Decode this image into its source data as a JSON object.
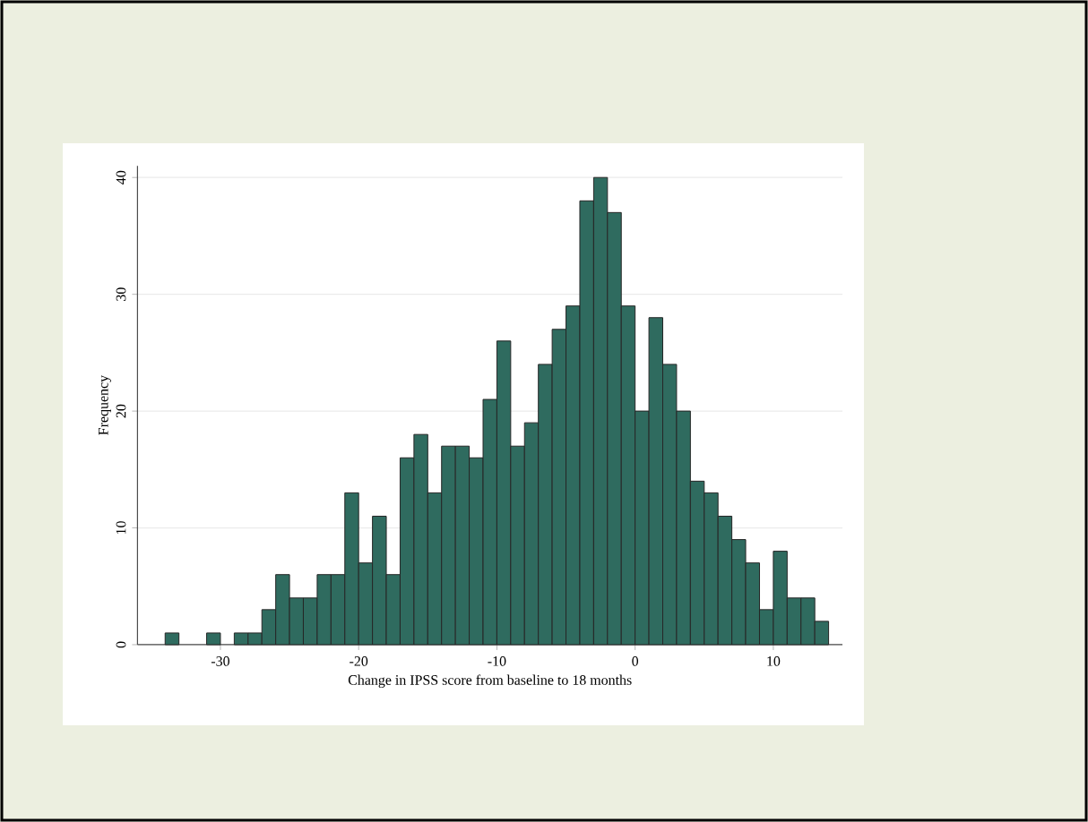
{
  "chart_data": {
    "type": "histogram",
    "xlabel": "Change in IPSS score from baseline to 18 months",
    "ylabel": "Frequency",
    "bins": [
      -34,
      -33,
      -32,
      -31,
      -30,
      -29,
      -28,
      -27,
      -26,
      -25,
      -24,
      -23,
      -22,
      -21,
      -20,
      -19,
      -18,
      -17,
      -16,
      -15,
      -14,
      -13,
      -12,
      -11,
      -10,
      -9,
      -8,
      -7,
      -6,
      -5,
      -4,
      -3,
      -2,
      -1,
      0,
      1,
      2,
      3,
      4,
      5,
      6,
      7,
      8,
      9,
      10,
      11,
      12,
      13,
      14
    ],
    "values": [
      1,
      0,
      0,
      1,
      0,
      1,
      1,
      3,
      6,
      4,
      4,
      6,
      6,
      13,
      7,
      11,
      6,
      16,
      18,
      13,
      17,
      17,
      16,
      21,
      26,
      17,
      19,
      24,
      27,
      29,
      38,
      40,
      37,
      29,
      20,
      28,
      24,
      20,
      14,
      13,
      11,
      9,
      7,
      3,
      8,
      4,
      4,
      2
    ],
    "color": "#2f6b5f",
    "xlim": [
      -36,
      15
    ],
    "ylim": [
      0,
      41
    ],
    "xticks": [
      -30,
      -20,
      -10,
      0,
      10
    ],
    "yticks": [
      0,
      10,
      20,
      30,
      40
    ],
    "grid": "y"
  }
}
